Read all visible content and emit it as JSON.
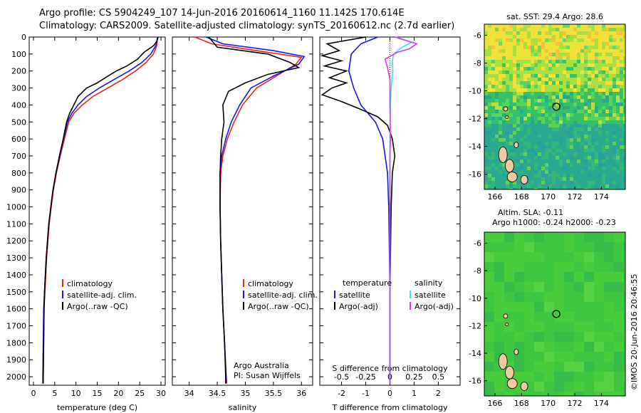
{
  "header": {
    "line1": "Argo profile: CS 5904249_107 14-Jun-2016 20160614_1160 11.142S 170.614E",
    "line2": "Climatology: CARS2009. Satellite-adjusted climatology: synTS_20160612.nc (2.7d earlier)"
  },
  "credit": "©IMOS 20-Jun-2016 20:46:55",
  "colors": {
    "climatology": "#e8241e",
    "satellite": "#1515e6",
    "argo": "#000000",
    "cyan": "#33e6e6",
    "magenta": "#e632e6"
  },
  "chart_data": [
    {
      "type": "line",
      "name": "temperature-panel",
      "xlabel": "temperature (deg C)",
      "ylabel": "",
      "xlim": [
        -1,
        31
      ],
      "ylim": [
        2050,
        0
      ],
      "xticks": [
        0,
        5,
        10,
        15,
        20,
        25,
        30
      ],
      "yticks": [
        0,
        100,
        200,
        300,
        400,
        500,
        600,
        700,
        800,
        900,
        1000,
        1100,
        1200,
        1300,
        1400,
        1500,
        1600,
        1700,
        1800,
        1900,
        2000
      ],
      "legend": {
        "placement": "lower-center",
        "entries": [
          "climatology",
          "satellite-adj. clim.",
          "Argo(..raw -QC)"
        ]
      },
      "series": [
        {
          "key": "clim",
          "color_key": "climatology",
          "points": [
            [
              29.2,
              0
            ],
            [
              29.0,
              50
            ],
            [
              28.2,
              100
            ],
            [
              26.5,
              150
            ],
            [
              24.0,
              200
            ],
            [
              21.0,
              250
            ],
            [
              17.5,
              300
            ],
            [
              14.0,
              350
            ],
            [
              11.5,
              400
            ],
            [
              9.5,
              450
            ],
            [
              8.3,
              500
            ],
            [
              7.3,
              600
            ],
            [
              6.3,
              700
            ],
            [
              5.4,
              800
            ],
            [
              4.7,
              900
            ],
            [
              4.2,
              1000
            ],
            [
              3.7,
              1100
            ],
            [
              3.4,
              1200
            ],
            [
              3.1,
              1300
            ],
            [
              2.9,
              1400
            ],
            [
              2.7,
              1500
            ],
            [
              2.5,
              1600
            ],
            [
              2.4,
              1800
            ],
            [
              2.3,
              2000
            ],
            [
              2.3,
              2040
            ]
          ]
        },
        {
          "key": "sat",
          "color_key": "satellite",
          "points": [
            [
              29.2,
              0
            ],
            [
              28.8,
              50
            ],
            [
              27.6,
              100
            ],
            [
              25.5,
              150
            ],
            [
              22.5,
              200
            ],
            [
              19.0,
              250
            ],
            [
              15.5,
              300
            ],
            [
              12.5,
              350
            ],
            [
              10.5,
              400
            ],
            [
              9.0,
              450
            ],
            [
              8.0,
              500
            ],
            [
              7.1,
              600
            ],
            [
              6.2,
              700
            ],
            [
              5.3,
              800
            ],
            [
              4.6,
              900
            ],
            [
              4.1,
              1000
            ],
            [
              3.6,
              1100
            ],
            [
              3.3,
              1200
            ],
            [
              3.0,
              1300
            ],
            [
              2.8,
              1400
            ],
            [
              2.6,
              1500
            ],
            [
              2.4,
              1600
            ],
            [
              2.3,
              1800
            ],
            [
              2.2,
              2000
            ],
            [
              2.2,
              2040
            ]
          ]
        },
        {
          "key": "argo",
          "color_key": "argo",
          "points": [
            [
              29.3,
              0
            ],
            [
              29.0,
              25
            ],
            [
              28.3,
              50
            ],
            [
              26.0,
              90
            ],
            [
              24.5,
              130
            ],
            [
              22.0,
              170
            ],
            [
              19.5,
              200
            ],
            [
              17.5,
              230
            ],
            [
              15.0,
              270
            ],
            [
              12.5,
              300
            ],
            [
              10.5,
              350
            ],
            [
              9.5,
              400
            ],
            [
              8.5,
              450
            ],
            [
              7.8,
              500
            ],
            [
              7.0,
              600
            ],
            [
              6.1,
              700
            ],
            [
              5.3,
              800
            ],
            [
              4.6,
              900
            ],
            [
              4.1,
              1000
            ],
            [
              3.6,
              1100
            ],
            [
              3.3,
              1200
            ],
            [
              3.0,
              1300
            ],
            [
              2.8,
              1400
            ],
            [
              2.6,
              1500
            ],
            [
              2.5,
              1600
            ],
            [
              2.4,
              1800
            ],
            [
              2.3,
              2000
            ],
            [
              2.3,
              2040
            ]
          ]
        }
      ]
    },
    {
      "type": "line",
      "name": "salinity-panel",
      "xlabel": "salinity",
      "xlim": [
        33.7,
        36.2
      ],
      "ylim": [
        2050,
        0
      ],
      "xticks": [
        34,
        34.5,
        35,
        35.5,
        36
      ],
      "xticklabels": [
        "34",
        "34.5",
        "35",
        "35.5",
        "36"
      ],
      "legend": {
        "placement": "lower-right",
        "entries": [
          "climatology",
          "satellite-adj. clim.",
          "Argo(..raw -QC)"
        ]
      },
      "annotation": [
        "Argo Australia",
        "PI: Susan Wijffels"
      ],
      "series": [
        {
          "key": "clim",
          "color_key": "climatology",
          "points": [
            [
              34.1,
              0
            ],
            [
              34.4,
              40
            ],
            [
              35.2,
              80
            ],
            [
              36.0,
              120
            ],
            [
              35.9,
              160
            ],
            [
              35.6,
              220
            ],
            [
              35.2,
              300
            ],
            [
              34.95,
              400
            ],
            [
              34.8,
              500
            ],
            [
              34.68,
              600
            ],
            [
              34.6,
              700
            ],
            [
              34.56,
              800
            ],
            [
              34.55,
              1000
            ],
            [
              34.56,
              1200
            ],
            [
              34.58,
              1400
            ],
            [
              34.6,
              1600
            ],
            [
              34.63,
              1800
            ],
            [
              34.66,
              2000
            ],
            [
              34.67,
              2040
            ]
          ]
        },
        {
          "key": "sat",
          "color_key": "satellite",
          "points": [
            [
              34.3,
              0
            ],
            [
              34.6,
              40
            ],
            [
              35.5,
              80
            ],
            [
              36.05,
              115
            ],
            [
              35.95,
              160
            ],
            [
              35.5,
              230
            ],
            [
              35.1,
              300
            ],
            [
              34.9,
              400
            ],
            [
              34.75,
              500
            ],
            [
              34.65,
              600
            ],
            [
              34.58,
              700
            ],
            [
              34.55,
              800
            ],
            [
              34.55,
              1000
            ],
            [
              34.56,
              1200
            ],
            [
              34.58,
              1400
            ],
            [
              34.6,
              1600
            ],
            [
              34.63,
              1800
            ],
            [
              34.66,
              2000
            ],
            [
              34.66,
              2040
            ]
          ]
        },
        {
          "key": "argo",
          "color_key": "argo",
          "points": [
            [
              34.35,
              0
            ],
            [
              34.5,
              60
            ],
            [
              35.4,
              100
            ],
            [
              35.8,
              150
            ],
            [
              35.95,
              180
            ],
            [
              35.4,
              220
            ],
            [
              35.0,
              270
            ],
            [
              34.7,
              320
            ],
            [
              34.6,
              400
            ],
            [
              34.62,
              500
            ],
            [
              34.58,
              600
            ],
            [
              34.56,
              700
            ],
            [
              34.55,
              800
            ],
            [
              34.55,
              1000
            ],
            [
              34.56,
              1200
            ],
            [
              34.58,
              1400
            ],
            [
              34.6,
              1600
            ],
            [
              34.63,
              1800
            ],
            [
              34.65,
              2000
            ],
            [
              34.65,
              2040
            ]
          ]
        }
      ]
    },
    {
      "type": "line",
      "name": "difference-panel",
      "xlabel": "T difference from climatology",
      "toplabel": "S difference from climatology",
      "xlim": [
        -2.9,
        2.9
      ],
      "ylim": [
        2050,
        0
      ],
      "xticks": [
        -2,
        -1,
        0,
        1,
        2
      ],
      "xticklabels": [
        "-2",
        "-1",
        "0",
        "1",
        "2"
      ],
      "sticks": [
        -0.5,
        -0.25,
        0,
        0.25,
        0.5
      ],
      "sticklabels": [
        "-0.5",
        "-0.25",
        "0",
        "0.25",
        "0.5"
      ],
      "legend": {
        "placement": "lower",
        "titles": [
          "temperature",
          "salinity"
        ],
        "entries": [
          "satellite",
          "Argo(-adj)",
          "satellite",
          "Argo(-adj)"
        ]
      },
      "series": [
        {
          "key": "t_sat",
          "color_key": "satellite",
          "points": [
            [
              -0.5,
              0
            ],
            [
              -1.2,
              40
            ],
            [
              -1.6,
              100
            ],
            [
              -1.7,
              200
            ],
            [
              -1.5,
              300
            ],
            [
              -1.2,
              400
            ],
            [
              -0.6,
              500
            ],
            [
              -0.3,
              600
            ],
            [
              -0.2,
              700
            ],
            [
              -0.1,
              800
            ],
            [
              -0.05,
              1000
            ],
            [
              0,
              1500
            ],
            [
              0,
              2040
            ]
          ]
        },
        {
          "key": "t_argo",
          "color_key": "argo",
          "points": [
            [
              -1.0,
              0
            ],
            [
              -2.6,
              40
            ],
            [
              -2.1,
              80
            ],
            [
              -2.8,
              110
            ],
            [
              -2.0,
              140
            ],
            [
              -2.7,
              170
            ],
            [
              -1.8,
              200
            ],
            [
              -2.5,
              240
            ],
            [
              -1.8,
              270
            ],
            [
              -2.4,
              300
            ],
            [
              -2.8,
              340
            ],
            [
              -2.0,
              380
            ],
            [
              -1.3,
              420
            ],
            [
              -0.5,
              470
            ],
            [
              -0.1,
              520
            ],
            [
              0.1,
              600
            ],
            [
              0.2,
              700
            ],
            [
              0.1,
              800
            ],
            [
              0.05,
              1000
            ],
            [
              0.0,
              1500
            ],
            [
              0.0,
              2040
            ]
          ]
        },
        {
          "key": "s_sat",
          "color_key": "cyan",
          "points": [
            [
              0.25,
              0
            ],
            [
              0.9,
              30
            ],
            [
              0.5,
              60
            ],
            [
              0.15,
              100
            ],
            [
              0.1,
              140
            ],
            [
              0.12,
              200
            ],
            [
              0.05,
              300
            ],
            [
              0.02,
              400
            ],
            [
              0.0,
              600
            ],
            [
              0.0,
              2040
            ]
          ]
        },
        {
          "key": "s_argo",
          "color_key": "magenta",
          "points": [
            [
              0.2,
              0
            ],
            [
              1.1,
              40
            ],
            [
              0.8,
              70
            ],
            [
              0.3,
              90
            ],
            [
              -0.2,
              130
            ],
            [
              -0.1,
              180
            ],
            [
              0.0,
              250
            ],
            [
              0.0,
              400
            ],
            [
              0.02,
              600
            ],
            [
              0.0,
              700
            ],
            [
              0.0,
              2040
            ]
          ]
        }
      ]
    }
  ],
  "sst_map": {
    "title": "sat. SST: 29.4  Argo: 28.6",
    "lon_ticks": [
      166,
      168,
      170,
      172,
      174
    ],
    "lat_ticks": [
      -6,
      -8,
      -10,
      -12,
      -14,
      -16
    ],
    "lon_range": [
      165.2,
      175.8
    ],
    "lat_range": [
      -17.1,
      -5.2
    ],
    "float": {
      "lon": 170.614,
      "lat": -11.142
    }
  },
  "sla_map": {
    "title1": "Altim. SLA: -0.11",
    "title2": "Argo h1000: -0.24 h2000: -0.23",
    "lon_ticks": [
      166,
      168,
      170,
      172,
      174
    ],
    "lat_ticks": [
      -6,
      -8,
      -10,
      -12,
      -14,
      -16
    ],
    "lon_range": [
      165.2,
      175.8
    ],
    "lat_range": [
      -17.1,
      -5.2
    ],
    "float": {
      "lon": 170.614,
      "lat": -11.142
    }
  }
}
